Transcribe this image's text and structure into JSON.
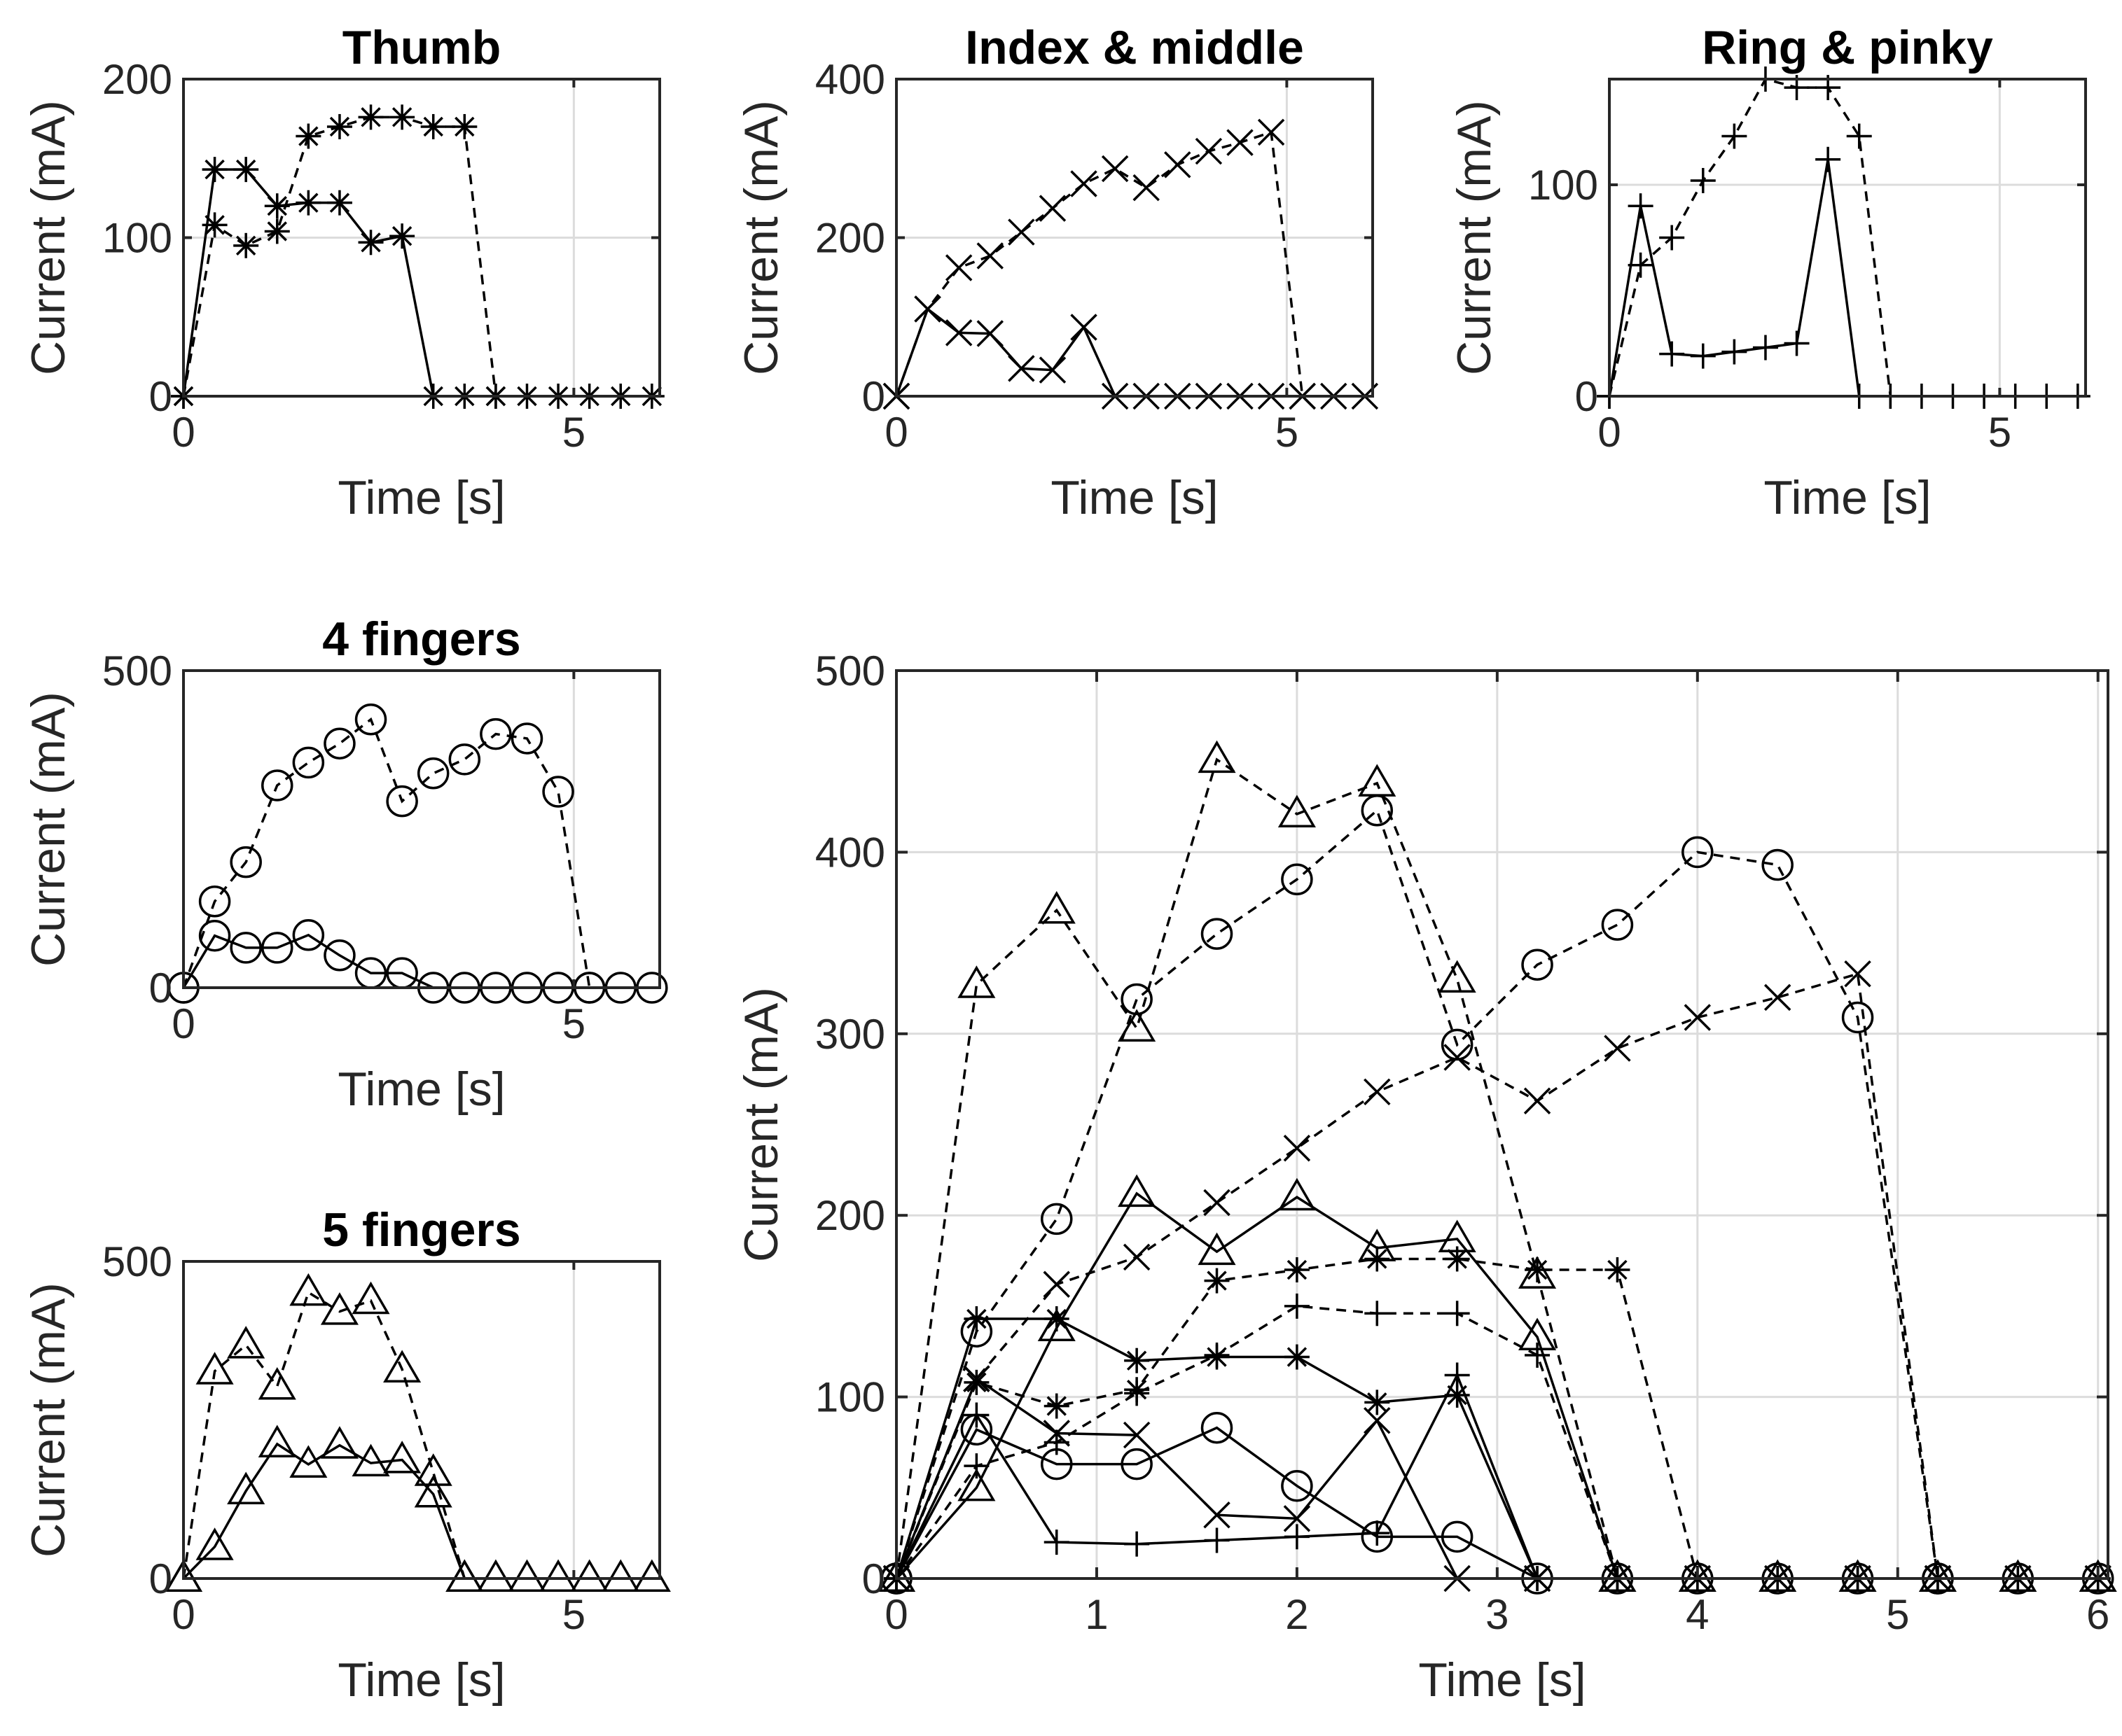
{
  "figure": {
    "background": "#ffffff",
    "axis_color": "#262626",
    "grid_color": "#dcdcdc",
    "line_color": "#000000"
  },
  "chart_data": [
    {
      "id": "thumb",
      "type": "line",
      "title": "Thumb",
      "xlabel": "Time [s]",
      "ylabel": "Current (mA)",
      "xlim": [
        0,
        6.1
      ],
      "ylim": [
        0,
        200
      ],
      "xticks": [
        0,
        5
      ],
      "yticks": [
        0,
        100,
        200
      ],
      "grid": true,
      "series": [
        {
          "name": "thumb-solid",
          "style": "solid",
          "marker": "asterisk",
          "x": [
            0,
            0.4,
            0.8,
            1.2,
            1.6,
            2.0,
            2.4,
            2.8,
            3.2,
            3.6,
            4.0,
            4.4,
            4.8,
            5.2,
            5.6,
            6.0
          ],
          "y": [
            0,
            143,
            143,
            120,
            122,
            122,
            97,
            101,
            0,
            0,
            0,
            0,
            0,
            0,
            0,
            0
          ]
        },
        {
          "name": "thumb-dashed",
          "style": "dashed",
          "marker": "asterisk",
          "x": [
            0,
            0.4,
            0.8,
            1.2,
            1.6,
            2.0,
            2.4,
            2.8,
            3.2,
            3.6,
            4.0
          ],
          "y": [
            0,
            108,
            95,
            104,
            164,
            170,
            176,
            176,
            170,
            170,
            0
          ]
        }
      ]
    },
    {
      "id": "index-middle",
      "type": "line",
      "title": "Index & middle",
      "xlabel": "Time [s]",
      "ylabel": "Current (mA)",
      "xlim": [
        0,
        6.1
      ],
      "ylim": [
        0,
        400
      ],
      "xticks": [
        0,
        5
      ],
      "yticks": [
        0,
        200,
        400
      ],
      "grid": true,
      "series": [
        {
          "name": "index-solid",
          "style": "solid",
          "marker": "x",
          "x": [
            0,
            0.4,
            0.8,
            1.2,
            1.6,
            2.0,
            2.4,
            2.8,
            3.2,
            3.6,
            4.0,
            4.4,
            4.8,
            5.2,
            5.6,
            6.0
          ],
          "y": [
            0,
            110,
            80,
            79,
            35,
            33,
            87,
            0,
            0,
            0,
            0,
            0,
            0,
            0,
            0,
            0
          ]
        },
        {
          "name": "index-dashed",
          "style": "dashed",
          "marker": "x",
          "x": [
            0,
            0.4,
            0.8,
            1.2,
            1.6,
            2.0,
            2.4,
            2.8,
            3.2,
            3.6,
            4.0,
            4.4,
            4.8,
            5.2
          ],
          "y": [
            0,
            110,
            162,
            177,
            207,
            237,
            268,
            287,
            263,
            292,
            309,
            320,
            333,
            0
          ]
        }
      ]
    },
    {
      "id": "ring-pinky",
      "type": "line",
      "title": "Ring & pinky",
      "xlabel": "Time [s]",
      "ylabel": "Current (mA)",
      "xlim": [
        0,
        6.1
      ],
      "ylim": [
        0,
        150
      ],
      "xticks": [
        0,
        5
      ],
      "yticks": [
        0,
        100
      ],
      "grid": true,
      "series": [
        {
          "name": "ring-solid",
          "style": "solid",
          "marker": "plus",
          "x": [
            0,
            0.4,
            0.8,
            1.2,
            1.6,
            2.0,
            2.4,
            2.8,
            3.2,
            3.6,
            4.0,
            4.4,
            4.8,
            5.2,
            5.6,
            6.0
          ],
          "y": [
            0,
            90,
            20,
            19,
            21,
            23,
            25,
            112,
            0,
            0,
            0,
            0,
            0,
            0,
            0,
            0
          ]
        },
        {
          "name": "ring-dashed",
          "style": "dashed",
          "marker": "plus",
          "x": [
            0,
            0.4,
            0.8,
            1.2,
            1.6,
            2.0,
            2.4,
            2.8,
            3.2,
            3.6
          ],
          "y": [
            0,
            62,
            75,
            102,
            123,
            150,
            146,
            146,
            123,
            0
          ]
        }
      ]
    },
    {
      "id": "four-fingers",
      "type": "line",
      "title": "4 fingers",
      "xlabel": "Time [s]",
      "ylabel": "Current (mA)",
      "xlim": [
        0,
        6.1
      ],
      "ylim": [
        0,
        500
      ],
      "xticks": [
        0,
        5
      ],
      "yticks": [
        0,
        500
      ],
      "grid": true,
      "series": [
        {
          "name": "four-solid",
          "style": "solid",
          "marker": "circle",
          "x": [
            0,
            0.4,
            0.8,
            1.2,
            1.6,
            2.0,
            2.4,
            2.8,
            3.2,
            3.6,
            4.0,
            4.4,
            4.8,
            5.2,
            5.6,
            6.0
          ],
          "y": [
            0,
            82,
            63,
            63,
            83,
            51,
            23,
            23,
            0,
            0,
            0,
            0,
            0,
            0,
            0,
            0
          ]
        },
        {
          "name": "four-dashed",
          "style": "dashed",
          "marker": "circle",
          "x": [
            0,
            0.4,
            0.8,
            1.2,
            1.6,
            2.0,
            2.4,
            2.8,
            3.2,
            3.6,
            4.0,
            4.4,
            4.8,
            5.2
          ],
          "y": [
            0,
            136,
            198,
            319,
            355,
            385,
            423,
            294,
            338,
            360,
            400,
            393,
            309,
            0
          ]
        }
      ]
    },
    {
      "id": "five-fingers",
      "type": "line",
      "title": "5 fingers",
      "xlabel": "Time [s]",
      "ylabel": "Current (mA)",
      "xlim": [
        0,
        6.1
      ],
      "ylim": [
        0,
        500
      ],
      "xticks": [
        0,
        5
      ],
      "yticks": [
        0,
        500
      ],
      "grid": true,
      "series": [
        {
          "name": "five-solid",
          "style": "solid",
          "marker": "triangle",
          "x": [
            0,
            0.4,
            0.8,
            1.2,
            1.6,
            2.0,
            2.4,
            2.8,
            3.2,
            3.6,
            4.0,
            4.4,
            4.8,
            5.2,
            5.6,
            6.0
          ],
          "y": [
            0,
            50,
            138,
            212,
            180,
            210,
            182,
            187,
            133,
            0,
            0,
            0,
            0,
            0,
            0,
            0
          ]
        },
        {
          "name": "five-dashed",
          "style": "dashed",
          "marker": "triangle",
          "x": [
            0,
            0.4,
            0.8,
            1.2,
            1.6,
            2.0,
            2.4,
            2.8,
            3.2,
            3.6
          ],
          "y": [
            0,
            327,
            368,
            303,
            451,
            421,
            438,
            330,
            167,
            0
          ]
        }
      ]
    },
    {
      "id": "combined",
      "type": "line",
      "title": "",
      "xlabel": "Time [s]",
      "ylabel": "Current (mA)",
      "xlim": [
        0,
        6.05
      ],
      "ylim": [
        0,
        500
      ],
      "xticks": [
        0,
        1,
        2,
        3,
        4,
        5,
        6
      ],
      "yticks": [
        0,
        100,
        200,
        300,
        400,
        500
      ],
      "grid": true,
      "series": [
        {
          "name": "thumb-solid",
          "style": "solid",
          "marker": "asterisk",
          "x": [
            0,
            0.4,
            0.8,
            1.2,
            1.6,
            2.0,
            2.4,
            2.8,
            3.2,
            3.6,
            4.0,
            4.4,
            4.8,
            5.2,
            5.6,
            6.0
          ],
          "y": [
            0,
            143,
            143,
            120,
            122,
            122,
            97,
            101,
            0,
            0,
            0,
            0,
            0,
            0,
            0,
            0
          ]
        },
        {
          "name": "thumb-dashed",
          "style": "dashed",
          "marker": "asterisk",
          "x": [
            0,
            0.4,
            0.8,
            1.2,
            1.6,
            2.0,
            2.4,
            2.8,
            3.2,
            3.6,
            4.0
          ],
          "y": [
            0,
            108,
            95,
            104,
            164,
            170,
            176,
            176,
            170,
            170,
            0
          ]
        },
        {
          "name": "index-solid",
          "style": "solid",
          "marker": "x",
          "x": [
            0,
            0.4,
            0.8,
            1.2,
            1.6,
            2.0,
            2.4,
            2.8,
            3.2,
            3.6,
            4.0,
            4.4,
            4.8,
            5.2,
            5.6,
            6.0
          ],
          "y": [
            0,
            110,
            80,
            79,
            35,
            33,
            87,
            0,
            0,
            0,
            0,
            0,
            0,
            0,
            0,
            0
          ]
        },
        {
          "name": "index-dashed",
          "style": "dashed",
          "marker": "x",
          "x": [
            0,
            0.4,
            0.8,
            1.2,
            1.6,
            2.0,
            2.4,
            2.8,
            3.2,
            3.6,
            4.0,
            4.4,
            4.8,
            5.2
          ],
          "y": [
            0,
            110,
            162,
            177,
            207,
            237,
            268,
            287,
            263,
            292,
            309,
            320,
            333,
            0
          ]
        },
        {
          "name": "ring-solid",
          "style": "solid",
          "marker": "plus",
          "x": [
            0,
            0.4,
            0.8,
            1.2,
            1.6,
            2.0,
            2.4,
            2.8,
            3.2,
            3.6,
            4.0,
            4.4,
            4.8,
            5.2,
            5.6,
            6.0
          ],
          "y": [
            0,
            90,
            20,
            19,
            21,
            23,
            25,
            112,
            0,
            0,
            0,
            0,
            0,
            0,
            0,
            0
          ]
        },
        {
          "name": "ring-dashed",
          "style": "dashed",
          "marker": "plus",
          "x": [
            0,
            0.4,
            0.8,
            1.2,
            1.6,
            2.0,
            2.4,
            2.8,
            3.2,
            3.6
          ],
          "y": [
            0,
            62,
            75,
            102,
            123,
            150,
            146,
            146,
            123,
            0
          ]
        },
        {
          "name": "four-solid",
          "style": "solid",
          "marker": "circle",
          "x": [
            0,
            0.4,
            0.8,
            1.2,
            1.6,
            2.0,
            2.4,
            2.8,
            3.2,
            3.6,
            4.0,
            4.4,
            4.8,
            5.2,
            5.6,
            6.0
          ],
          "y": [
            0,
            82,
            63,
            63,
            83,
            51,
            23,
            23,
            0,
            0,
            0,
            0,
            0,
            0,
            0,
            0
          ]
        },
        {
          "name": "four-dashed",
          "style": "dashed",
          "marker": "circle",
          "x": [
            0,
            0.4,
            0.8,
            1.2,
            1.6,
            2.0,
            2.4,
            2.8,
            3.2,
            3.6,
            4.0,
            4.4,
            4.8,
            5.2
          ],
          "y": [
            0,
            136,
            198,
            319,
            355,
            385,
            423,
            294,
            338,
            360,
            400,
            393,
            309,
            0
          ]
        },
        {
          "name": "five-solid",
          "style": "solid",
          "marker": "triangle",
          "x": [
            0,
            0.4,
            0.8,
            1.2,
            1.6,
            2.0,
            2.4,
            2.8,
            3.2,
            3.6,
            4.0,
            4.4,
            4.8,
            5.2,
            5.6,
            6.0
          ],
          "y": [
            0,
            50,
            138,
            212,
            180,
            210,
            182,
            187,
            133,
            0,
            0,
            0,
            0,
            0,
            0,
            0
          ]
        },
        {
          "name": "five-dashed",
          "style": "dashed",
          "marker": "triangle",
          "x": [
            0,
            0.4,
            0.8,
            1.2,
            1.6,
            2.0,
            2.4,
            2.8,
            3.2,
            3.6
          ],
          "y": [
            0,
            327,
            368,
            303,
            451,
            421,
            438,
            330,
            167,
            0
          ]
        }
      ]
    }
  ]
}
